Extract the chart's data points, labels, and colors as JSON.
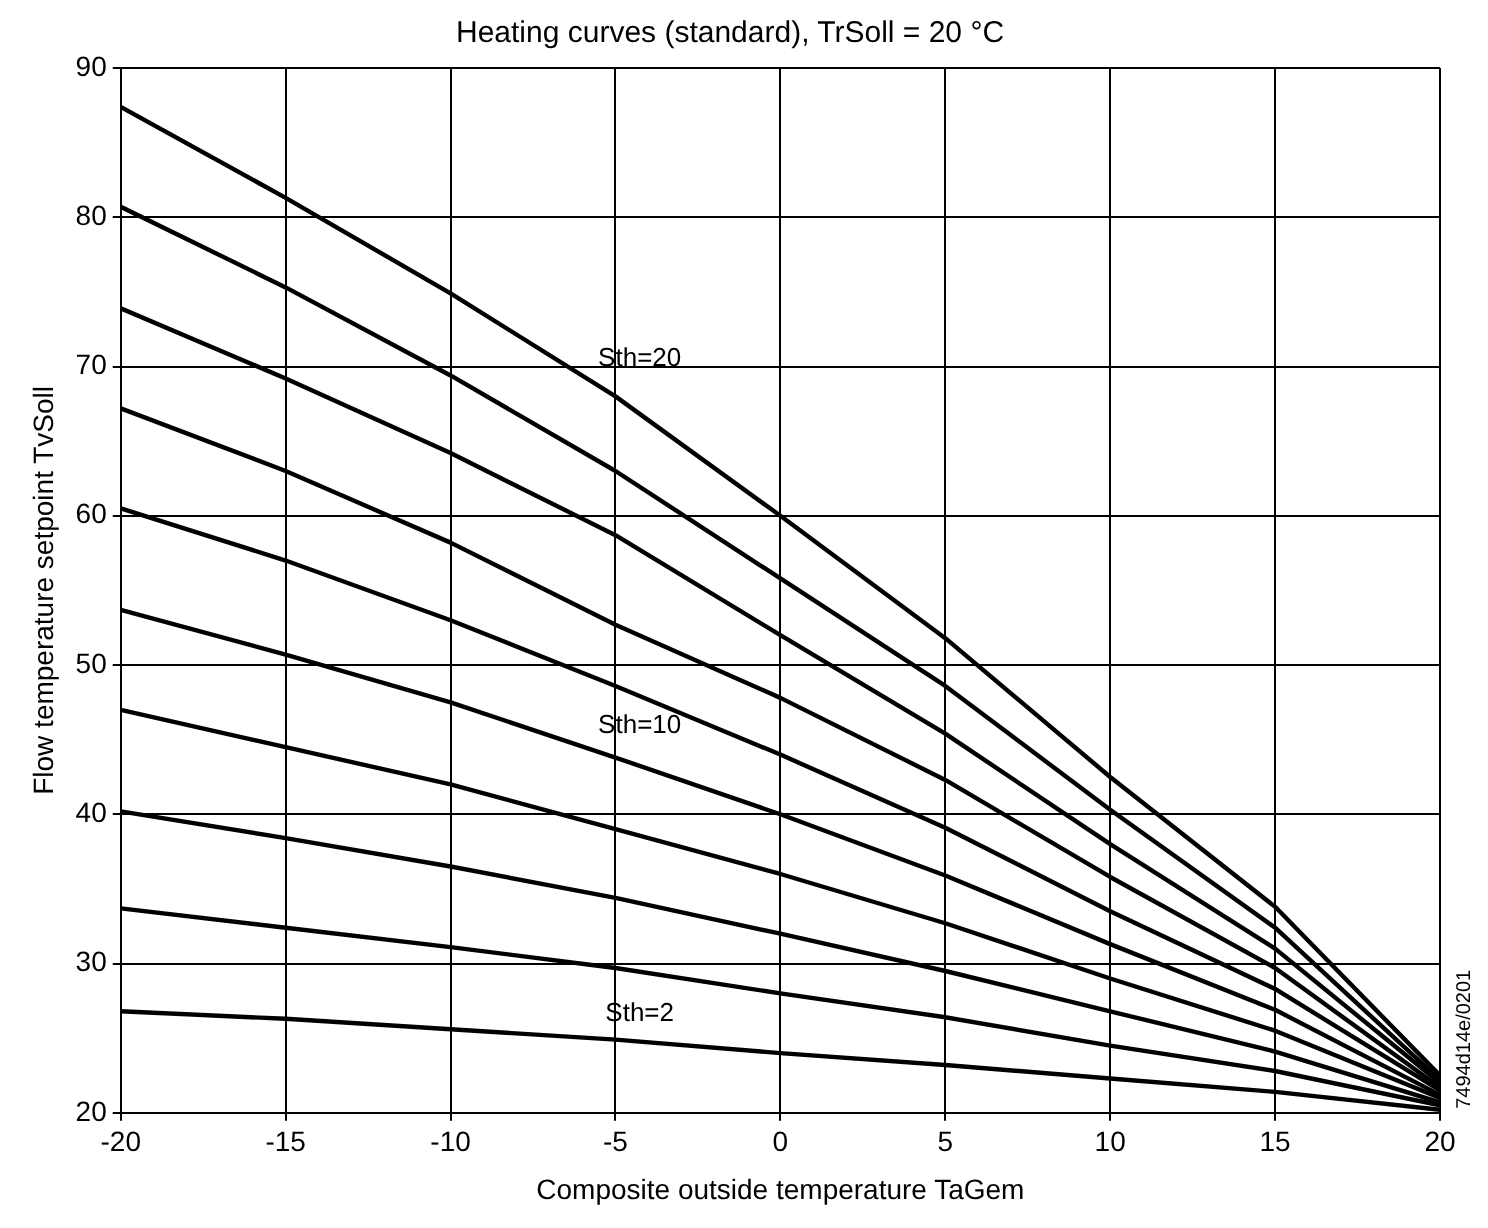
{
  "chart_data": {
    "type": "line",
    "title": "Heating curves (standard), TrSoll = 20 °C",
    "xlabel": "Composite outside temperature TaGem",
    "ylabel": "Flow temperature setpoint TvSoll",
    "x": [
      -20,
      -15,
      -10,
      -5,
      0,
      5,
      10,
      15,
      20
    ],
    "series": [
      {
        "name": "Sth=20",
        "color": "#000000",
        "values": [
          87.4,
          81.3,
          74.9,
          68.0,
          60.0,
          51.8,
          42.5,
          33.8,
          22.5
        ]
      },
      {
        "color": "#000000",
        "values": [
          80.7,
          75.3,
          69.4,
          63.0,
          55.8,
          48.6,
          40.3,
          32.4,
          22.2
        ]
      },
      {
        "color": "#000000",
        "values": [
          73.9,
          69.2,
          64.2,
          58.7,
          52.0,
          45.4,
          38.0,
          31.0,
          22.0
        ]
      },
      {
        "color": "#000000",
        "values": [
          67.2,
          63.0,
          58.2,
          52.7,
          47.8,
          42.3,
          35.8,
          29.7,
          21.7
        ]
      },
      {
        "color": "#000000",
        "values": [
          60.5,
          57.0,
          53.0,
          48.6,
          44.0,
          39.1,
          33.5,
          28.3,
          21.5
        ]
      },
      {
        "name": "Sth=10",
        "color": "#000000",
        "values": [
          53.7,
          50.7,
          47.5,
          43.8,
          40.0,
          35.9,
          31.3,
          26.9,
          21.2
        ]
      },
      {
        "color": "#000000",
        "values": [
          47.0,
          44.5,
          42.0,
          39.0,
          36.0,
          32.7,
          29.0,
          25.5,
          21.0
        ]
      },
      {
        "color": "#000000",
        "values": [
          40.2,
          38.4,
          36.5,
          34.4,
          32.0,
          29.5,
          26.8,
          24.1,
          20.7
        ]
      },
      {
        "color": "#000000",
        "values": [
          33.7,
          32.4,
          31.1,
          29.7,
          28.0,
          26.4,
          24.5,
          22.8,
          20.5
        ]
      },
      {
        "name": "Sth=2",
        "color": "#000000",
        "values": [
          26.8,
          26.3,
          25.6,
          24.9,
          24.0,
          23.2,
          22.3,
          21.4,
          20.2
        ]
      }
    ],
    "xlim": [
      -20,
      20
    ],
    "xticks": [
      -20,
      -15,
      -10,
      -5,
      0,
      5,
      10,
      15,
      20
    ],
    "ylim": [
      20,
      90
    ],
    "yticks": [
      20,
      30,
      40,
      50,
      60,
      70,
      80,
      90
    ],
    "grid": true,
    "legend": false,
    "marker": "none",
    "line_style": "solid",
    "annotations": [
      "7494d14e/0201"
    ]
  }
}
